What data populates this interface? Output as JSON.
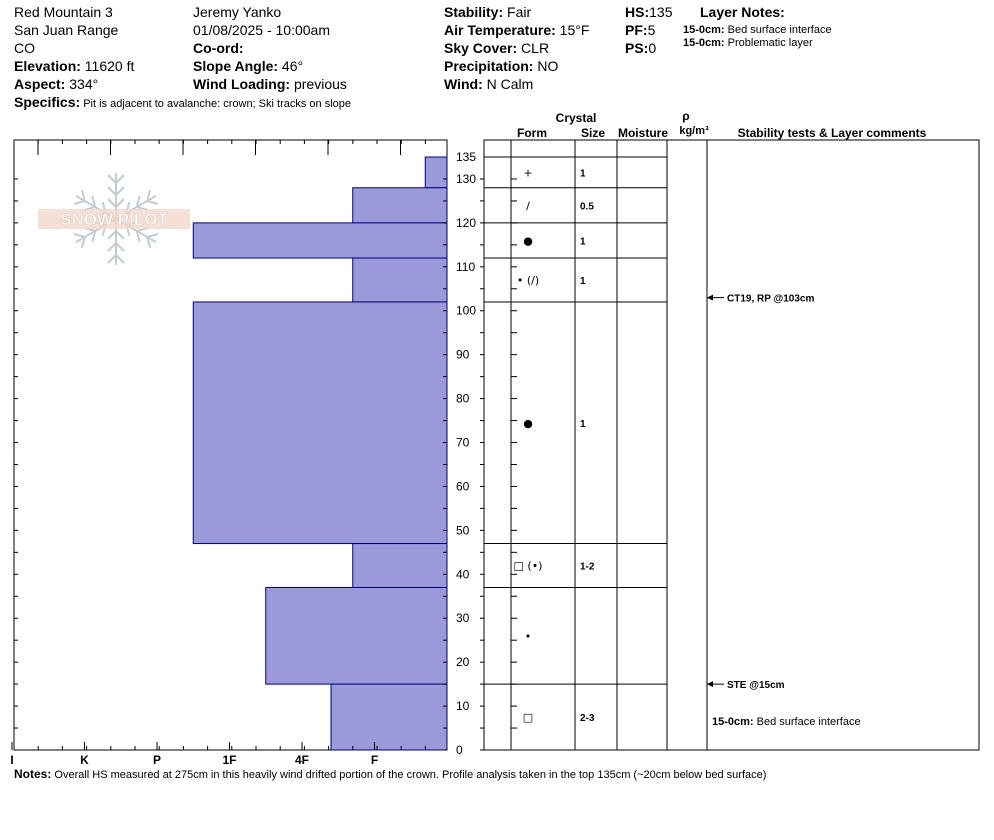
{
  "header": {
    "site": "Red Mountain 3",
    "range": "San Juan Range",
    "state": "CO",
    "elevation_label": "Elevation:",
    "elevation": " 11620 ft",
    "aspect_label": "Aspect:",
    "aspect": " 334°",
    "specifics_label": "Specifics:",
    "specifics": " Pit is adjacent to avalanche: crown; Ski tracks on slope",
    "observer": "Jeremy Yanko",
    "datetime": "01/08/2025 - 10:00am",
    "coord_label": "Co-ord:",
    "coord": "",
    "slope_label": "Slope Angle:",
    "slope": " 46°",
    "windload_label": "Wind Loading:",
    "windload": " previous",
    "stability_label": "Stability:",
    "stability": " Fair",
    "airtemp_label": "Air Temperature:",
    "airtemp": " 15°F",
    "sky_label": "Sky Cover:",
    "sky": " CLR",
    "precip_label": "Precipitation:",
    "precip": " NO",
    "wind_label": "Wind:",
    "wind": "  N Calm",
    "hs_label": "HS:",
    "hs": "135",
    "pf_label": "PF:",
    "pf": "5",
    "ps_label": "PS:",
    "ps": "0",
    "layer_notes_title": "Layer Notes:",
    "layer_notes": [
      {
        "range": "15-0cm:",
        "text": " Bed surface interface"
      },
      {
        "range": "15-0cm:",
        "text": " Problematic layer"
      }
    ]
  },
  "logo_text": "SNOW PILOT",
  "table_headers": {
    "crystal": "Crystal",
    "form": "Form",
    "size": "Size",
    "moisture": "Moisture",
    "rho": "ρ",
    "density_unit": "kg/m³",
    "stability": "Stability tests & Layer comments"
  },
  "chart_data": {
    "type": "bar",
    "orientation": "horizontal",
    "y_axis": {
      "label": "",
      "unit": "cm",
      "range": [
        0,
        135
      ],
      "ticks": [
        0,
        10,
        20,
        30,
        40,
        50,
        60,
        70,
        80,
        90,
        100,
        110,
        120,
        130,
        135
      ]
    },
    "x_axis": {
      "categories": [
        "I",
        "K",
        "P",
        "1F",
        "4F",
        "F"
      ],
      "direction": "right-to-left"
    },
    "hardness_scale": {
      "F": 1,
      "4F": 2,
      "1F": 3,
      "P": 4,
      "K": 5,
      "I": 6
    },
    "fill_color": "#9a9ad8",
    "stroke_color": "#000080",
    "layers": [
      {
        "top": 135,
        "bottom": 128,
        "hardness": "F-",
        "hardness_value": 0.3,
        "form": "+",
        "size": "1"
      },
      {
        "top": 128,
        "bottom": 120,
        "hardness": "4F",
        "hardness_value": 1.3,
        "form": "/",
        "size": "0.5"
      },
      {
        "top": 120,
        "bottom": 112,
        "hardness": "P",
        "hardness_value": 3.5,
        "form": "●",
        "size": "1"
      },
      {
        "top": 112,
        "bottom": 102,
        "hardness": "4F",
        "hardness_value": 1.3,
        "form": "• (/)",
        "size": "1"
      },
      {
        "top": 102,
        "bottom": 47,
        "hardness": "P",
        "hardness_value": 3.5,
        "form": "●",
        "size": "1"
      },
      {
        "top": 47,
        "bottom": 37,
        "hardness": "4F",
        "hardness_value": 1.3,
        "form": "□ (•)",
        "size": "1-2"
      },
      {
        "top": 37,
        "bottom": 15,
        "hardness": "1F",
        "hardness_value": 2.5,
        "form": "•",
        "size": ""
      },
      {
        "top": 15,
        "bottom": 0,
        "hardness": "4F+",
        "hardness_value": 1.6,
        "form": "□",
        "size": "2-3"
      }
    ],
    "tests": [
      {
        "height": 103,
        "text": "CT19, RP @103cm"
      },
      {
        "height": 15,
        "text": "STE @15cm"
      }
    ],
    "layer_comments": [
      {
        "height": 15,
        "range": "15-0cm:",
        "text": " Bed surface interface"
      }
    ]
  },
  "notes_label": "Notes:",
  "notes": " Overall HS measured at 275cm in this heavily wind drifted portion of the crown. Profile analysis taken in the top 135cm (~20cm below bed surface)"
}
